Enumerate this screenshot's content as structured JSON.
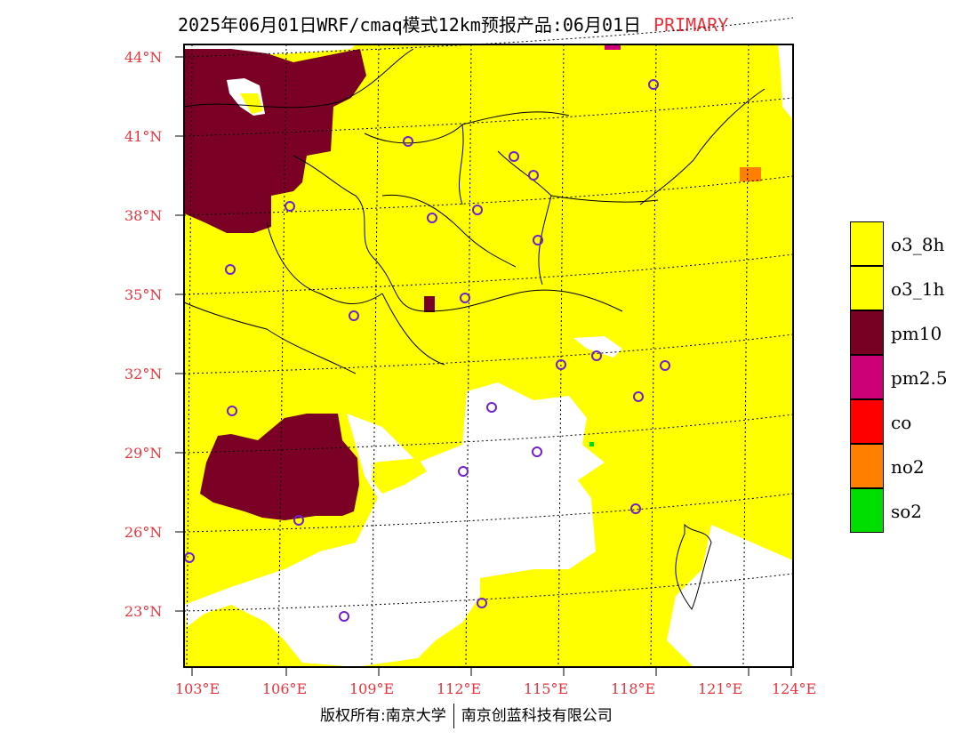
{
  "header": {
    "title": "2025年06月01日WRF/cmaq模式12km预报产品:06月01日",
    "run_type": "PRIMARY"
  },
  "map": {
    "lat_labels": [
      "44°N",
      "41°N",
      "38°N",
      "35°N",
      "32°N",
      "29°N",
      "26°N",
      "23°N"
    ],
    "lon_labels": [
      "103°E",
      "106°E",
      "109°E",
      "112°E",
      "115°E",
      "118°E",
      "121°E",
      "124°E"
    ],
    "regions": [
      {
        "pollutant": "o3_8h",
        "description": "dominant primary pollutant over most of domain"
      },
      {
        "pollutant": "pm10",
        "description": "northwest (Inner Mongolia/Ningxia) and Sichuan basin"
      },
      {
        "pollutant": "none",
        "description": "southern China white area"
      }
    ],
    "colors": {
      "yellow": "#ffff00",
      "maroon": "#7a0026",
      "white": "#ffffff",
      "border": "#000000",
      "station": "#7020d0"
    }
  },
  "legend": {
    "items": [
      {
        "label": "o3_8h",
        "color": "#ffff00"
      },
      {
        "label": "o3_1h",
        "color": "#ffff00"
      },
      {
        "label": "pm10",
        "color": "#780022"
      },
      {
        "label": "pm2.5",
        "color": "#cc0077"
      },
      {
        "label": "co",
        "color": "#ff0000"
      },
      {
        "label": "no2",
        "color": "#ff7f00"
      },
      {
        "label": "so2",
        "color": "#00dd00"
      }
    ]
  },
  "footer": {
    "copyright": "版权所有:南京大学",
    "company": "南京创蓝科技有限公司"
  }
}
